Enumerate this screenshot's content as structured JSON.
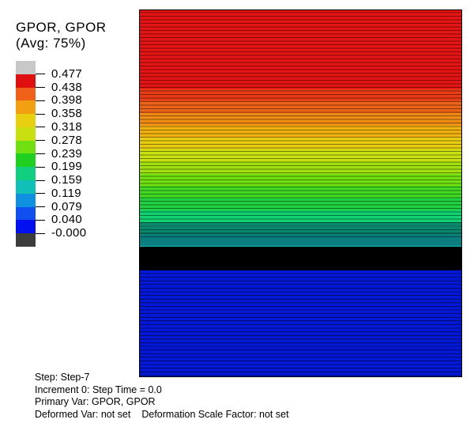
{
  "legend": {
    "title_line1": "GPOR, GPOR",
    "title_line2": "(Avg: 75%)",
    "labels": [
      "0.477",
      "0.438",
      "0.398",
      "0.358",
      "0.318",
      "0.278",
      "0.239",
      "0.199",
      "0.159",
      "0.119",
      "0.079",
      "0.040",
      "-0.000"
    ],
    "colors": [
      "#c8c8c8",
      "#e01010",
      "#f06018",
      "#f0a010",
      "#e8d010",
      "#c8e010",
      "#70e010",
      "#20d020",
      "#10d080",
      "#10c0b8",
      "#1090e0",
      "#1050f0",
      "#0010f0",
      "#3c3c3c"
    ]
  },
  "contour": {
    "top_color": "#e41414",
    "mid_colors": [
      "#e41414",
      "#e83c14",
      "#ec6418",
      "#f08c14",
      "#f0b010",
      "#e8cc10",
      "#c8e010",
      "#a0e010",
      "#70e010",
      "#40d820",
      "#20d040",
      "#10d070",
      "#10c8a0",
      "#10b8b8"
    ],
    "dark_band_color": "#000000",
    "bottom_color": "#0018d8"
  },
  "status": {
    "step": "Step: Step-7",
    "increment": "Increment 0: Step Time = 0.0",
    "primary_var": "Primary Var: GPOR, GPOR",
    "deformed_var": "Deformed Var: not set",
    "scale_factor": "Deformation Scale Factor: not set"
  }
}
